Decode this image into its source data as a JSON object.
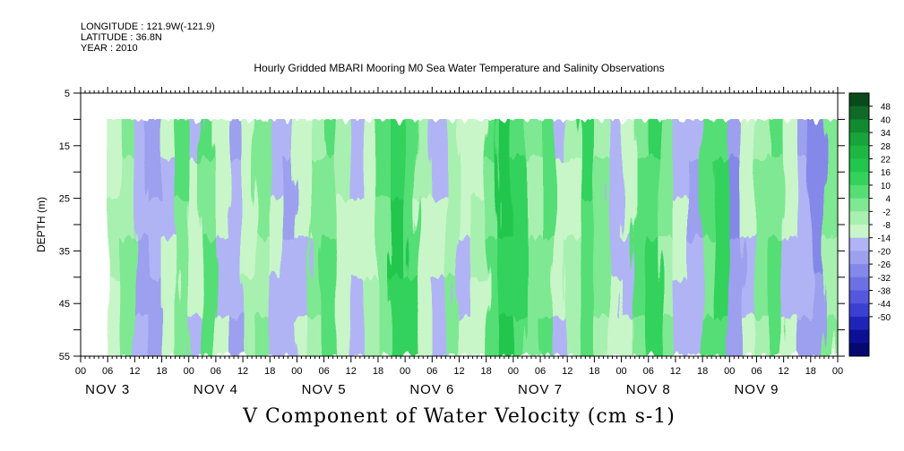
{
  "header": {
    "longitude": "LONGITUDE : 121.9W(-121.9)",
    "latitude": "LATITUDE : 36.8N",
    "year": "YEAR : 2010"
  },
  "chart_data": {
    "type": "heatmap",
    "title": "Hourly Gridded MBARI Mooring M0 Sea Water Temperature and Salinity Observations",
    "xlabel": "V Component of Water Velocity (cm s-1)",
    "ylabel": "DEPTH (m)",
    "ylim": [
      5,
      55
    ],
    "y_inverted": true,
    "yticks_labeled": [
      5,
      15,
      25,
      35,
      45,
      55
    ],
    "x_tick_labels": [
      "00",
      "06",
      "12",
      "18",
      "00",
      "06",
      "12",
      "18",
      "00",
      "06",
      "12",
      "18",
      "00",
      "06",
      "12",
      "18",
      "00",
      "06",
      "12",
      "18",
      "00",
      "06",
      "12",
      "18",
      "00",
      "06",
      "12",
      "18",
      "00"
    ],
    "date_labels": [
      "NOV 3",
      "NOV 4",
      "NOV 5",
      "NOV 6",
      "NOV 7",
      "NOV 8",
      "NOV 9"
    ],
    "xlim_hours": [
      0,
      168
    ],
    "data_depth_range": [
      10,
      55
    ],
    "data_start_hour": 6,
    "colorbar": {
      "labels": [
        "48",
        "40",
        "34",
        "28",
        "22",
        "16",
        "10",
        "4",
        "-2",
        "-8",
        "-14",
        "-20",
        "-26",
        "-32",
        "-38",
        "-44",
        "-50"
      ],
      "levels": [
        52,
        46,
        40,
        34,
        28,
        22,
        16,
        10,
        4,
        -2,
        -8,
        -14,
        -20,
        -26,
        -32,
        -38,
        -44,
        -50
      ],
      "colors": [
        "#0a4a1a",
        "#0e6a26",
        "#128a30",
        "#17a43a",
        "#1db844",
        "#22c64d",
        "#33d25b",
        "#55de74",
        "#7fe892",
        "#a8f0b0",
        "#c8f6c8",
        "#b0b4f4",
        "#9ca0ee",
        "#8488e8",
        "#6c70e2",
        "#5558dc",
        "#3c40d2",
        "#1f24b8",
        "#0c1096",
        "#050870"
      ]
    },
    "v_by_hour": [
      {
        "hour": 6,
        "v": -4
      },
      {
        "hour": 9,
        "v": 6
      },
      {
        "hour": 12,
        "v": -12
      },
      {
        "hour": 15,
        "v": -16
      },
      {
        "hour": 18,
        "v": -6
      },
      {
        "hour": 21,
        "v": 8
      },
      {
        "hour": 24,
        "v": -8
      },
      {
        "hour": 27,
        "v": 10
      },
      {
        "hour": 30,
        "v": -6
      },
      {
        "hour": 33,
        "v": -14
      },
      {
        "hour": 36,
        "v": -4
      },
      {
        "hour": 39,
        "v": 4
      },
      {
        "hour": 42,
        "v": -10
      },
      {
        "hour": 45,
        "v": -14
      },
      {
        "hour": 48,
        "v": -6
      },
      {
        "hour": 51,
        "v": 4
      },
      {
        "hour": 54,
        "v": 10
      },
      {
        "hour": 57,
        "v": -4
      },
      {
        "hour": 60,
        "v": -10
      },
      {
        "hour": 63,
        "v": -4
      },
      {
        "hour": 66,
        "v": 8
      },
      {
        "hour": 69,
        "v": 20
      },
      {
        "hour": 72,
        "v": 14
      },
      {
        "hour": 75,
        "v": -4
      },
      {
        "hour": 78,
        "v": -10
      },
      {
        "hour": 81,
        "v": 2
      },
      {
        "hour": 84,
        "v": -8
      },
      {
        "hour": 87,
        "v": -4
      },
      {
        "hour": 90,
        "v": 10
      },
      {
        "hour": 93,
        "v": 22
      },
      {
        "hour": 96,
        "v": 18
      },
      {
        "hour": 99,
        "v": 6
      },
      {
        "hour": 102,
        "v": 12
      },
      {
        "hour": 105,
        "v": -6
      },
      {
        "hour": 108,
        "v": -2
      },
      {
        "hour": 111,
        "v": 14
      },
      {
        "hour": 114,
        "v": 4
      },
      {
        "hour": 117,
        "v": -10
      },
      {
        "hour": 120,
        "v": -8
      },
      {
        "hour": 123,
        "v": 10
      },
      {
        "hour": 126,
        "v": 16
      },
      {
        "hour": 129,
        "v": 4
      },
      {
        "hour": 132,
        "v": -10
      },
      {
        "hour": 135,
        "v": -14
      },
      {
        "hour": 138,
        "v": 10
      },
      {
        "hour": 141,
        "v": 18
      },
      {
        "hour": 144,
        "v": -20
      },
      {
        "hour": 147,
        "v": -6
      },
      {
        "hour": 150,
        "v": 4
      },
      {
        "hour": 153,
        "v": 10
      },
      {
        "hour": 156,
        "v": -6
      },
      {
        "hour": 159,
        "v": -14
      },
      {
        "hour": 162,
        "v": -22
      },
      {
        "hour": 165,
        "v": 4
      },
      {
        "hour": 168,
        "v": -2
      }
    ]
  }
}
